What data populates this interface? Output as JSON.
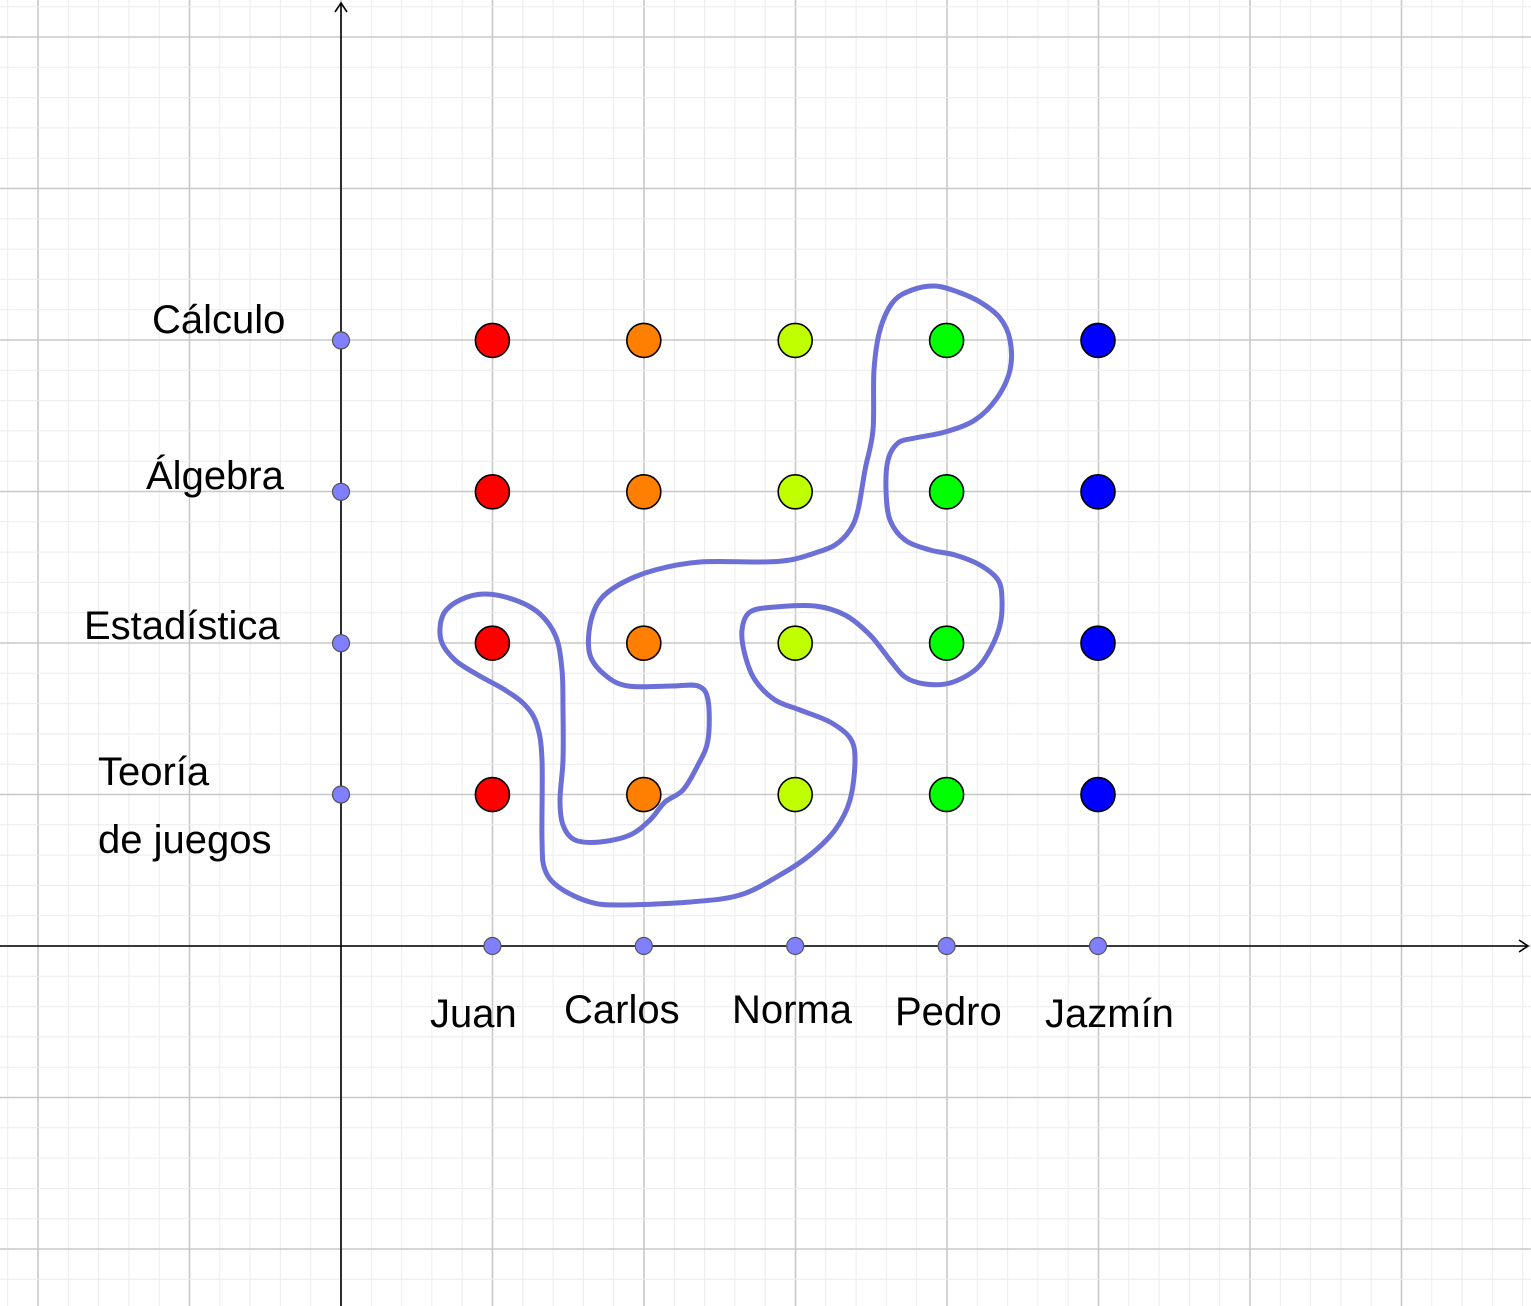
{
  "diagram": {
    "students": [
      "Juan",
      "Carlos",
      "Norma",
      "Pedro",
      "Jazmín"
    ],
    "subjects": [
      "Cálculo",
      "Álgebra",
      "Estadística",
      "Teoría",
      "de juegos"
    ],
    "student_colors": [
      "#ff0000",
      "#ff8000",
      "#c0ff00",
      "#00ff00",
      "#0000ff"
    ],
    "axis_point_color": "#7f7fff",
    "curve_color": "#6b6fd6",
    "grid": true
  }
}
